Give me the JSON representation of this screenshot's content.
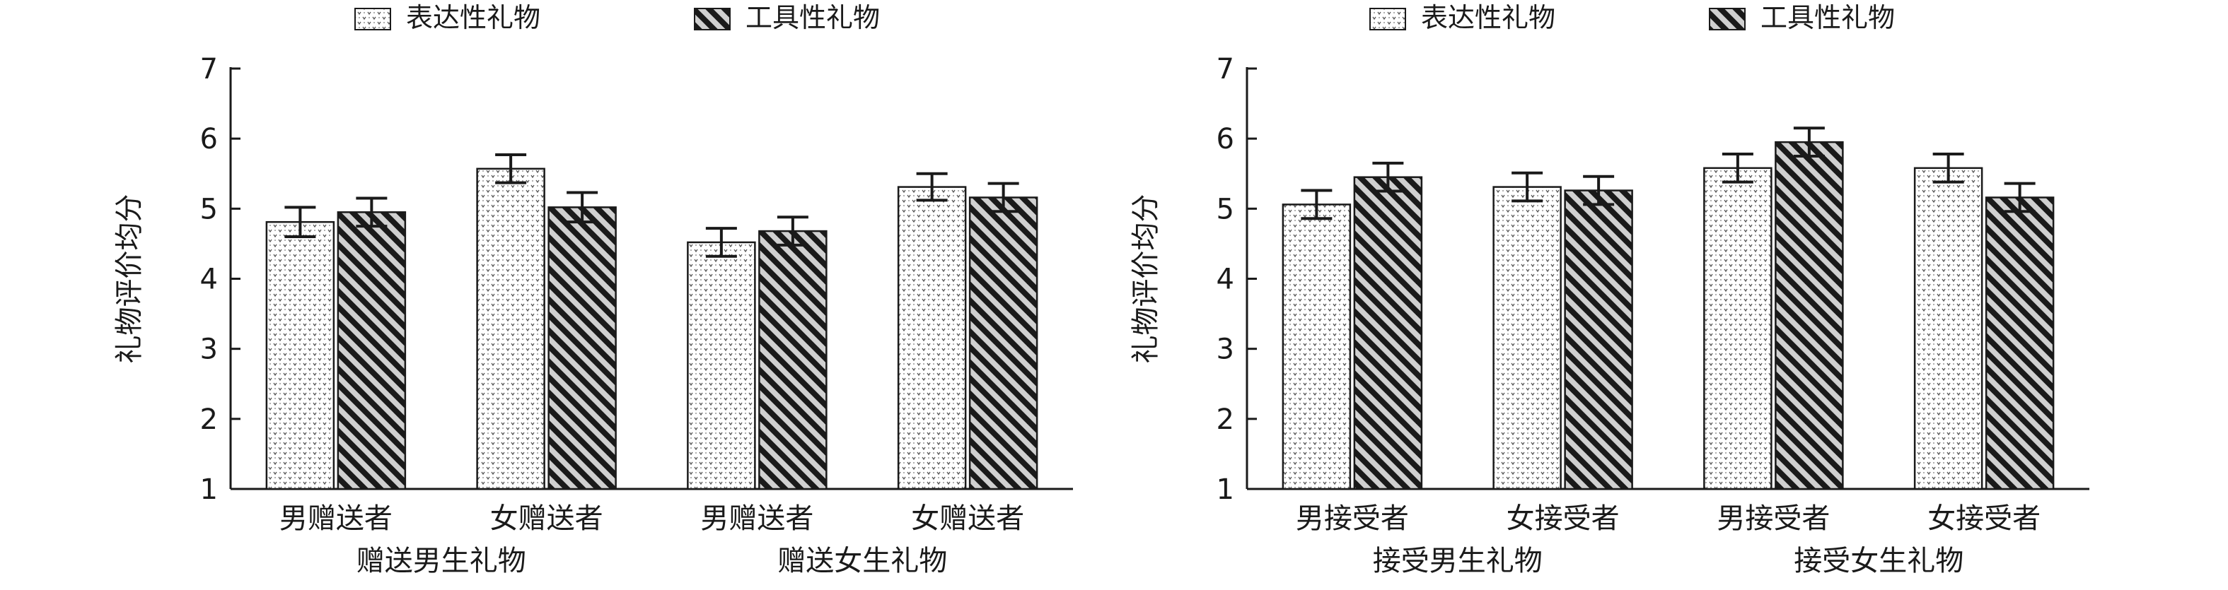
{
  "chart_data": [
    {
      "type": "bar",
      "legend": [
        {
          "label": "表达性礼物",
          "pattern": "dots"
        },
        {
          "label": "工具性礼物",
          "pattern": "hatch"
        }
      ],
      "ylabel": "礼物评价均分",
      "ylim": [
        1,
        7
      ],
      "yticks": [
        "1",
        "2",
        "3",
        "4",
        "5",
        "6",
        "7"
      ],
      "groups": [
        {
          "label": "赠送男生礼物",
          "categories": [
            "男赠送者",
            "女赠送者"
          ]
        },
        {
          "label": "赠送女生礼物",
          "categories": [
            "男赠送者",
            "女赠送者"
          ]
        }
      ],
      "series": [
        {
          "name": "表达性礼物",
          "values": [
            4.81,
            5.57,
            4.52,
            5.31
          ],
          "errors": [
            0.21,
            0.2,
            0.2,
            0.19
          ]
        },
        {
          "name": "工具性礼物",
          "values": [
            4.95,
            5.02,
            4.68,
            5.16
          ],
          "errors": [
            0.2,
            0.21,
            0.2,
            0.2
          ]
        }
      ]
    },
    {
      "type": "bar",
      "legend": [
        {
          "label": "表达性礼物",
          "pattern": "dots"
        },
        {
          "label": "工具性礼物",
          "pattern": "hatch"
        }
      ],
      "ylabel": "礼物评价均分",
      "ylim": [
        1,
        7
      ],
      "yticks": [
        "1",
        "2",
        "3",
        "4",
        "5",
        "6",
        "7"
      ],
      "groups": [
        {
          "label": "接受男生礼物",
          "categories": [
            "男接受者",
            "女接受者"
          ]
        },
        {
          "label": "接受女生礼物",
          "categories": [
            "男接受者",
            "女接受者"
          ]
        }
      ],
      "series": [
        {
          "name": "表达性礼物",
          "values": [
            5.06,
            5.31,
            5.58,
            5.58
          ],
          "errors": [
            0.2,
            0.2,
            0.2,
            0.2
          ]
        },
        {
          "name": "工具性礼物",
          "values": [
            5.45,
            5.26,
            5.95,
            5.16
          ],
          "errors": [
            0.2,
            0.2,
            0.2,
            0.2
          ]
        }
      ]
    }
  ]
}
